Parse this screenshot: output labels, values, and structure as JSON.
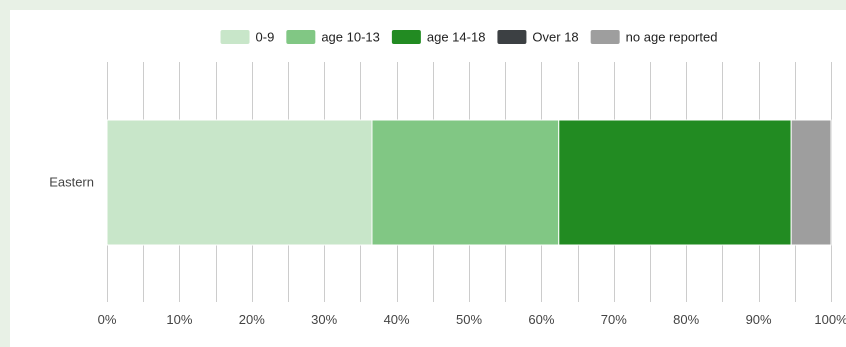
{
  "chart_data": {
    "type": "bar",
    "orientation": "horizontal",
    "stacked": "percent",
    "categories": [
      "Eastern"
    ],
    "series": [
      {
        "name": "0-9",
        "color": "#c8e6c9",
        "values": [
          36.6
        ]
      },
      {
        "name": "age 10-13",
        "color": "#81c784",
        "values": [
          25.8
        ]
      },
      {
        "name": "age 14-18",
        "color": "#228b22",
        "values": [
          32.1
        ]
      },
      {
        "name": "Over 18",
        "color": "#3c4043",
        "values": [
          0
        ]
      },
      {
        "name": "no age reported",
        "color": "#9e9e9e",
        "values": [
          5.5
        ]
      }
    ],
    "xlim": [
      0,
      100
    ],
    "x_ticks": [
      "0%",
      "10%",
      "20%",
      "30%",
      "40%",
      "50%",
      "60%",
      "70%",
      "80%",
      "90%",
      "100%"
    ],
    "grid": true,
    "legend_position": "top"
  }
}
